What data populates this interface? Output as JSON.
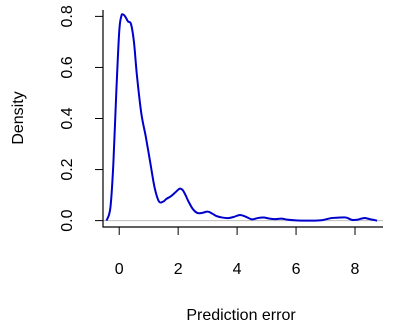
{
  "chart_data": {
    "type": "line",
    "title": "",
    "xlabel": "Prediction error",
    "ylabel": "Density",
    "xlim": [
      -0.55,
      8.95
    ],
    "ylim": [
      -0.025,
      0.825
    ],
    "x_ticks": [
      0,
      2,
      4,
      6,
      8
    ],
    "x_tick_labels": [
      "0",
      "2",
      "4",
      "6",
      "8"
    ],
    "y_ticks": [
      0.0,
      0.2,
      0.4,
      0.6,
      0.8
    ],
    "y_tick_labels": [
      "0.0",
      "0.2",
      "0.4",
      "0.6",
      "0.8"
    ],
    "grid": false,
    "baseline": 0,
    "colors": {
      "line": "#0000cc",
      "baseline": "#bebebe",
      "axis": "#000000"
    },
    "series": [
      {
        "x": [
          -0.43,
          -0.3,
          -0.2,
          -0.1,
          0.0,
          0.07,
          0.12,
          0.2,
          0.3,
          0.4,
          0.5,
          0.6,
          0.75,
          0.9,
          1.05,
          1.2,
          1.35,
          1.5,
          1.6,
          1.75,
          1.9,
          2.05,
          2.15,
          2.25,
          2.35,
          2.5,
          2.65,
          2.8,
          3.0,
          3.15,
          3.3,
          3.5,
          3.7,
          3.9,
          4.1,
          4.3,
          4.5,
          4.7,
          4.9,
          5.1,
          5.3,
          5.5,
          5.7,
          6.0,
          6.3,
          6.6,
          6.9,
          7.2,
          7.5,
          7.7,
          7.9,
          8.1,
          8.3,
          8.5,
          8.75
        ],
        "y": [
          0.0,
          0.05,
          0.22,
          0.5,
          0.74,
          0.8,
          0.808,
          0.8,
          0.78,
          0.77,
          0.7,
          0.57,
          0.42,
          0.33,
          0.23,
          0.13,
          0.075,
          0.075,
          0.085,
          0.095,
          0.11,
          0.125,
          0.12,
          0.1,
          0.075,
          0.045,
          0.03,
          0.03,
          0.035,
          0.028,
          0.018,
          0.012,
          0.01,
          0.015,
          0.022,
          0.015,
          0.005,
          0.01,
          0.012,
          0.008,
          0.006,
          0.008,
          0.004,
          0.001,
          0.0,
          0.0,
          0.002,
          0.01,
          0.012,
          0.012,
          0.003,
          0.004,
          0.01,
          0.006,
          0.0
        ]
      }
    ]
  }
}
